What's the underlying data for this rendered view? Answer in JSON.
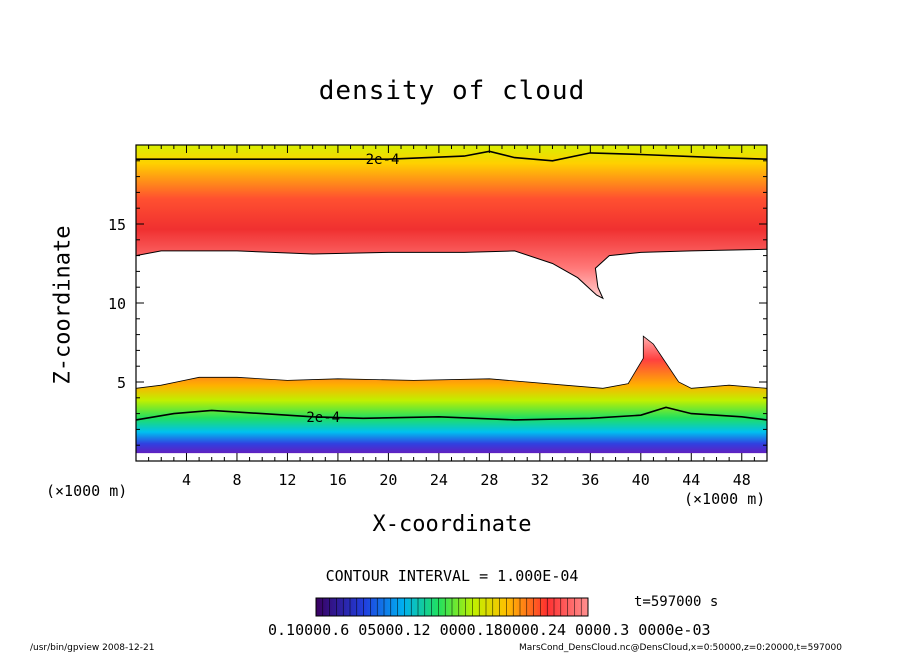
{
  "chart_data": {
    "type": "heatmap",
    "title": "density of cloud",
    "xlabel": "X-coordinate",
    "ylabel": "Z-coordinate",
    "x_unit_left": "(×1000 m)",
    "x_unit_right": "(×1000 m)",
    "xlim": [
      0,
      50
    ],
    "ylim": [
      0,
      20
    ],
    "xticks": [
      4,
      8,
      12,
      16,
      20,
      24,
      28,
      32,
      36,
      40,
      44,
      48
    ],
    "yticks": [
      5,
      10,
      15
    ],
    "contour_labels": [
      "2e-4",
      "2e-4"
    ],
    "contour_interval": "CONTOUR INTERVAL = 1.000E-04",
    "time": "t=597000 s",
    "colorbar_labels": "0.10000.6 05000.12 0000.180000.24 0000.3 0000e-03",
    "footer_left": "/usr/bin/gpview   2008-12-21",
    "footer_right": "MarsCond_DensCloud.nc@DensCloud,x=0:50000,z=0:20000,t=597000",
    "colors": {
      "frame": "#000000",
      "background": "#ffffff"
    },
    "upper_layer_top_z": 19.1,
    "upper_layer_base_z": [
      [
        0,
        13.0
      ],
      [
        2,
        13.3
      ],
      [
        8,
        13.3
      ],
      [
        14,
        13.1
      ],
      [
        20,
        13.2
      ],
      [
        26,
        13.2
      ],
      [
        30,
        13.3
      ],
      [
        33,
        12.5
      ],
      [
        35,
        11.6
      ],
      [
        36.5,
        10.5
      ],
      [
        37,
        10.3
      ],
      [
        36.6,
        11
      ],
      [
        36.4,
        12.2
      ],
      [
        37.5,
        13.0
      ],
      [
        40,
        13.2
      ],
      [
        44,
        13.3
      ],
      [
        50,
        13.4
      ]
    ],
    "lower_layer_top_z": [
      [
        0,
        4.6
      ],
      [
        2,
        4.8
      ],
      [
        5,
        5.3
      ],
      [
        8,
        5.3
      ],
      [
        12,
        5.1
      ],
      [
        16,
        5.2
      ],
      [
        22,
        5.1
      ],
      [
        28,
        5.2
      ],
      [
        34,
        4.8
      ],
      [
        37,
        4.6
      ],
      [
        39,
        4.9
      ],
      [
        40.2,
        6.5
      ],
      [
        40.2,
        7.9
      ],
      [
        41,
        7.4
      ],
      [
        42,
        6.2
      ],
      [
        43,
        5.0
      ],
      [
        44,
        4.6
      ],
      [
        47,
        4.8
      ],
      [
        50,
        4.6
      ]
    ],
    "lower_layer_base_z": 0.5
  }
}
